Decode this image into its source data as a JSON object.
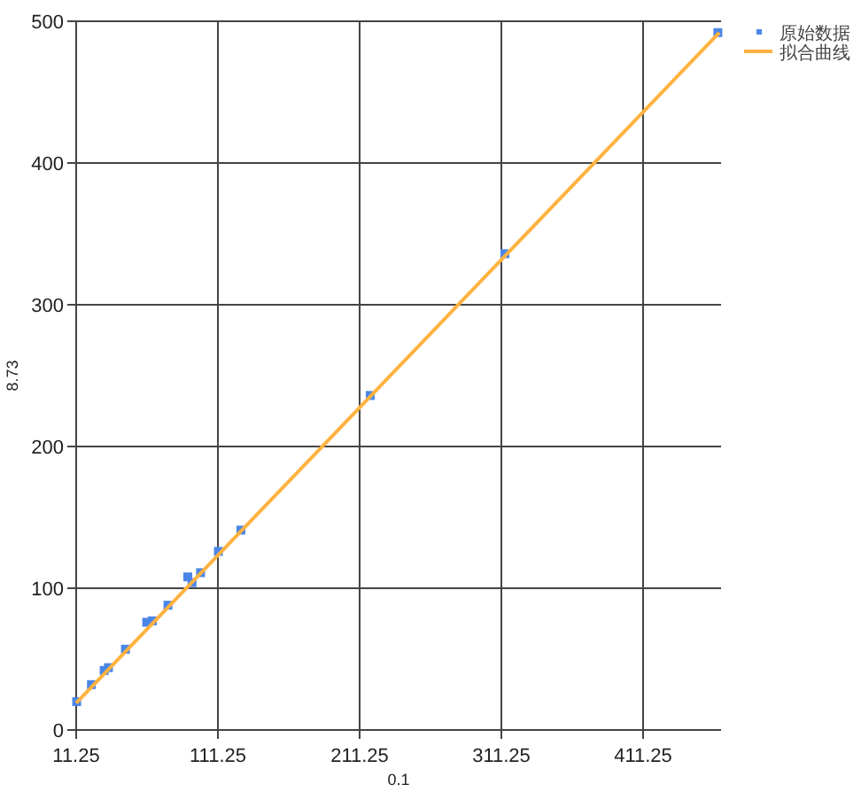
{
  "chart_data": {
    "type": "scatter",
    "xlabel": "0.1",
    "ylabel": "8.73",
    "xlim": [
      11.25,
      466.25
    ],
    "ylim": [
      0,
      500
    ],
    "xticks": [
      11.25,
      111.25,
      211.25,
      311.25,
      411.25
    ],
    "yticks": [
      0,
      100,
      200,
      300,
      400,
      500
    ],
    "grid": true,
    "legend": "top right",
    "marker": "square",
    "series": [
      {
        "name": "原始数据",
        "color": "#4a86e8",
        "x": [
          11.6,
          22,
          31,
          34,
          46,
          61,
          65,
          76,
          90,
          93,
          99,
          111.6,
          127.5,
          218.75,
          313.75,
          464
        ],
        "values": [
          20,
          32,
          42,
          44,
          57,
          76,
          77,
          88,
          108,
          104,
          111,
          126,
          141,
          236,
          336,
          492
        ]
      },
      {
        "name": "拟合曲线",
        "type": "line",
        "color": "#ffb23f",
        "x": [
          11.25,
          465
        ],
        "values": [
          19,
          492
        ],
        "marker": "none",
        "line_style": "solid"
      }
    ]
  }
}
